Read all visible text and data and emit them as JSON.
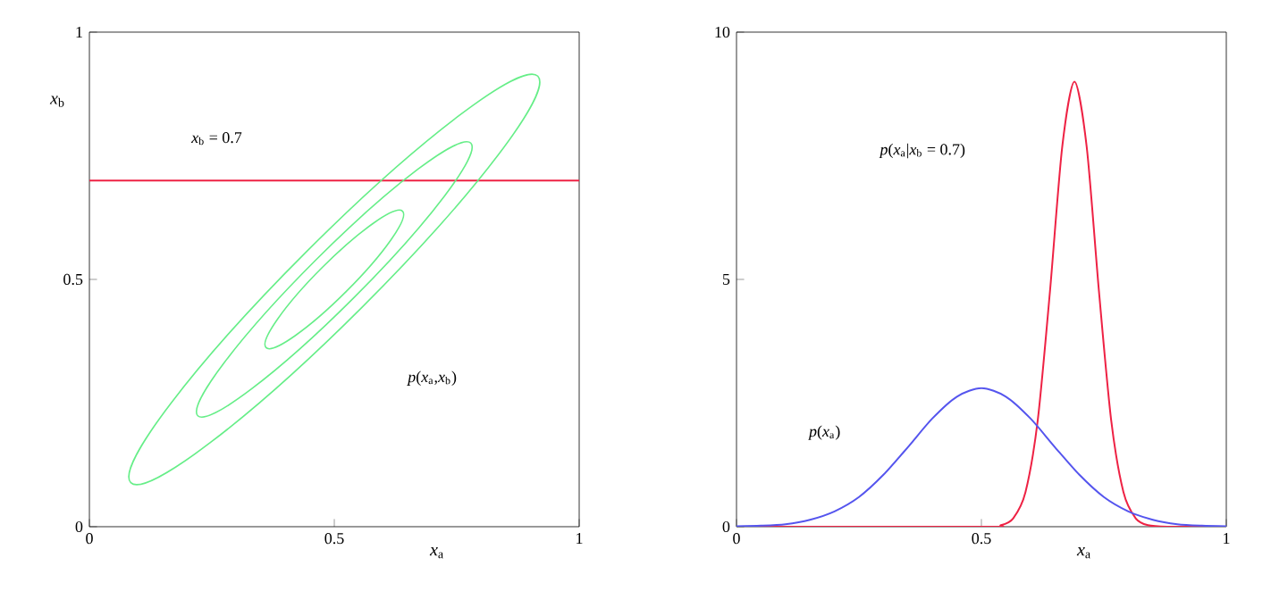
{
  "chart_data": [
    {
      "type": "line",
      "xlabel": "*x*$_{a}$",
      "ylabel": "*x*$_{b}$",
      "xlim": [
        0,
        1
      ],
      "ylim": [
        0,
        1
      ],
      "xticks": [
        0,
        0.5,
        1
      ],
      "yticks": [
        0,
        0.5,
        1
      ],
      "ref_lines": [
        {
          "axis": "y",
          "value": 0.7,
          "color": "#ee2244"
        }
      ],
      "annotations": [
        "*x*$_{b}$ = 0.7",
        "*p*(*x*$_{a}$,*x*$_{b}$)"
      ]
    },
    {
      "type": "line",
      "xlabel": "*x*$_{a}$",
      "xlim": [
        0,
        1
      ],
      "ylim": [
        0,
        10
      ],
      "xticks": [
        0,
        0.5,
        1
      ],
      "yticks": [
        0,
        5,
        10
      ],
      "series": [
        {
          "color": "#ee2244",
          "x": [
            0,
            0.5,
            0.54,
            0.565,
            0.59,
            0.615,
            0.64,
            0.665,
            0.69,
            0.715,
            0.74,
            0.765,
            0.79,
            0.815,
            0.84,
            0.88,
            1
          ],
          "values": [
            0,
            0,
            0.03,
            0.17,
            0.7,
            2.15,
            4.76,
            7.68,
            9,
            7.68,
            4.76,
            2.15,
            0.7,
            0.17,
            0.03,
            0,
            0
          ]
        },
        {
          "color": "#5555ee",
          "x": [
            0,
            0.05,
            0.1,
            0.15,
            0.2,
            0.25,
            0.3,
            0.35,
            0.4,
            0.45,
            0.5,
            0.55,
            0.6,
            0.65,
            0.7,
            0.75,
            0.8,
            0.85,
            0.9,
            0.95,
            1
          ],
          "values": [
            0.01,
            0.02,
            0.05,
            0.14,
            0.31,
            0.6,
            1.05,
            1.61,
            2.19,
            2.63,
            2.8,
            2.63,
            2.19,
            1.61,
            1.05,
            0.6,
            0.31,
            0.14,
            0.05,
            0.02,
            0.01
          ]
        }
      ],
      "annotations": [
        "*p*(*x*$_{a}$|*x*$_{b}$ = 0.7)",
        "*p*(*x*$_{a}$)"
      ]
    }
  ]
}
